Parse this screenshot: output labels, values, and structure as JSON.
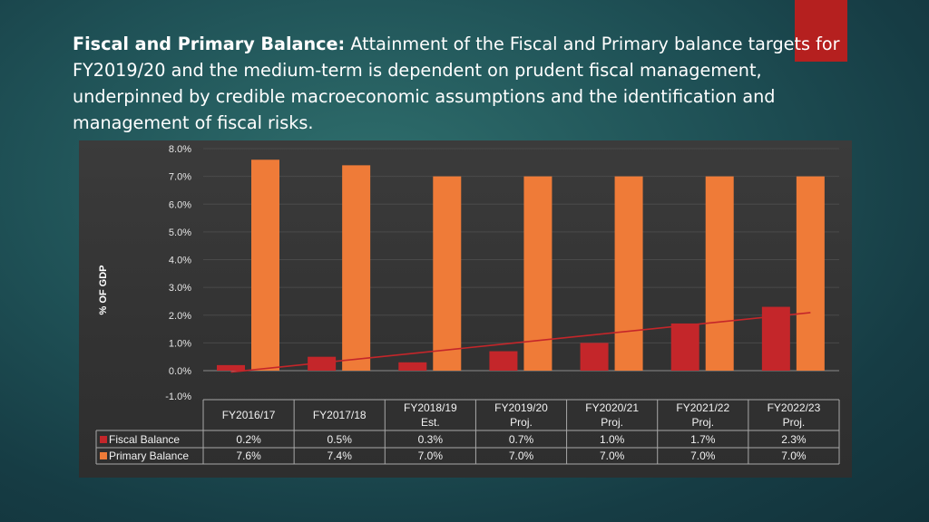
{
  "slide": {
    "heading_bold": "Fiscal and Primary Balance:",
    "heading_text": " Attainment of the Fiscal and Primary balance targets for FY2019/20 and the medium-term is dependent on prudent fiscal management, underpinned by credible macroeconomic assumptions and the identification and management of fiscal risks."
  },
  "colors": {
    "fiscal": "#c4262a",
    "primary": "#ef7b38",
    "trendline": "#c4262a",
    "accent": "#b5201f"
  },
  "chart_data": {
    "type": "bar",
    "title": "",
    "xlabel": "",
    "ylabel": "% OF GDP",
    "ylim": [
      -1.0,
      8.0
    ],
    "yticks": [
      "8.0%",
      "7.0%",
      "6.0%",
      "5.0%",
      "4.0%",
      "3.0%",
      "2.0%",
      "1.0%",
      "0.0%",
      "-1.0%"
    ],
    "categories": [
      [
        "FY2016/17"
      ],
      [
        "FY2017/18"
      ],
      [
        "FY2018/19",
        "Est."
      ],
      [
        "FY2019/20",
        "Proj."
      ],
      [
        "FY2020/21",
        "Proj."
      ],
      [
        "FY2021/22",
        "Proj."
      ],
      [
        "FY2022/23",
        "Proj."
      ]
    ],
    "series": [
      {
        "name": "Fiscal Balance",
        "values": [
          0.2,
          0.5,
          0.3,
          0.7,
          1.0,
          1.7,
          2.3
        ],
        "labels": [
          "0.2%",
          "0.5%",
          "0.3%",
          "0.7%",
          "1.0%",
          "1.7%",
          "2.3%"
        ]
      },
      {
        "name": "Primary Balance",
        "values": [
          7.6,
          7.4,
          7.0,
          7.0,
          7.0,
          7.0,
          7.0
        ],
        "labels": [
          "7.6%",
          "7.4%",
          "7.0%",
          "7.0%",
          "7.0%",
          "7.0%",
          "7.0%"
        ]
      }
    ],
    "trendline": {
      "series": "Fiscal Balance",
      "type": "linear"
    },
    "grid": true,
    "legend": "data-table"
  }
}
